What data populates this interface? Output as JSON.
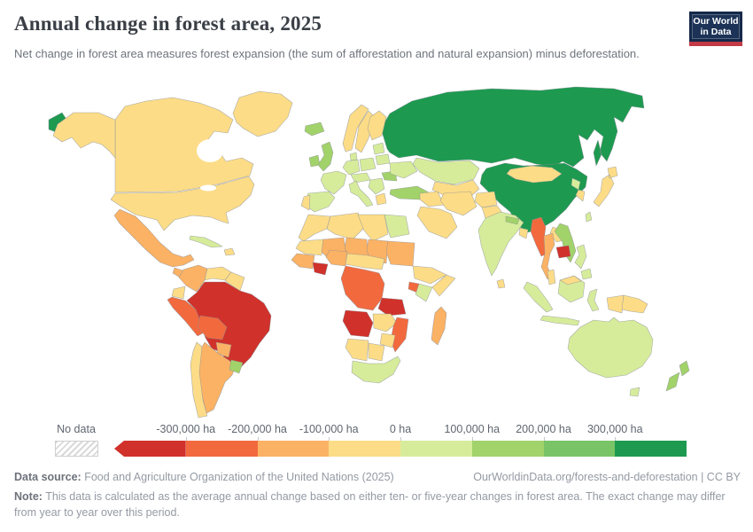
{
  "header": {
    "title": "Annual change in forest area, 2025",
    "subtitle": "Net change in forest area measures forest expansion (the sum of afforestation and natural expansion) minus deforestation.",
    "logo": {
      "line1": "Our World",
      "line2": "in Data"
    }
  },
  "legend": {
    "no_data_label": "No data",
    "tick_labels": [
      "-300,000 ha",
      "-200,000 ha",
      "-100,000 ha",
      "0 ha",
      "100,000 ha",
      "200,000 ha",
      "300,000 ha"
    ]
  },
  "footer": {
    "source_label": "Data source:",
    "source_text": " Food and Agriculture Organization of the United Nations (2025)",
    "link_text": "OurWorldinData.org/forests-and-deforestation | CC BY",
    "note_label": "Note:",
    "note_text": " This data is calculated as the average annual change based on either ten- or five-year changes in forest area. The exact change may differ from year to year over this period."
  },
  "colors": {
    "title_text": "#3a3f46",
    "subtitle_text": "#6e747d",
    "logo_background": "#1c3357",
    "logo_underline": "#c13a45",
    "legend_label_text": "#5f6670",
    "country_border": "#8a8f98"
  },
  "chart_data": {
    "type": "choropleth",
    "title": "Annual change in forest area, 2025",
    "unit": "ha",
    "legend_position": "bottom",
    "bin_edges": [
      -300000,
      -200000,
      -100000,
      0,
      100000,
      200000,
      300000
    ],
    "bin_colors": [
      "#d0312b",
      "#f2693e",
      "#fbb264",
      "#fcdc87",
      "#d7ec9b",
      "#a2d26a",
      "#79c466",
      "#1d9a50"
    ],
    "bin_labels": [
      "< -300,000",
      "-300,000 to -200,000",
      "-200,000 to -100,000",
      "-100,000 to 0",
      "0 to 100,000",
      "100,000 to 200,000",
      "200,000 to 300,000",
      "> 300,000"
    ],
    "regions": [
      {
        "id": "russia",
        "name": "Russia",
        "bin": 7
      },
      {
        "id": "china",
        "name": "China",
        "bin": 7
      },
      {
        "id": "canada",
        "name": "Canada",
        "bin": 3
      },
      {
        "id": "alaska",
        "name": "United States (Alaska)",
        "bin": 3
      },
      {
        "id": "usa",
        "name": "United States",
        "bin": 3
      },
      {
        "id": "greenland",
        "name": "Greenland",
        "bin": 3
      },
      {
        "id": "mexico",
        "name": "Mexico",
        "bin": 2
      },
      {
        "id": "central-america",
        "name": "Central America",
        "bin": 2
      },
      {
        "id": "panama-cr",
        "name": "Panama / Costa Rica",
        "bin": 5
      },
      {
        "id": "cuba",
        "name": "Cuba",
        "bin": 4
      },
      {
        "id": "hispaniola",
        "name": "Hispaniola",
        "bin": 3
      },
      {
        "id": "colombia",
        "name": "Colombia",
        "bin": 2
      },
      {
        "id": "venezuela",
        "name": "Venezuela",
        "bin": 3
      },
      {
        "id": "guianas",
        "name": "Guyana / Suriname",
        "bin": 3
      },
      {
        "id": "ecuador",
        "name": "Ecuador",
        "bin": 3
      },
      {
        "id": "peru",
        "name": "Peru",
        "bin": 1
      },
      {
        "id": "brazil",
        "name": "Brazil",
        "bin": 0
      },
      {
        "id": "bolivia",
        "name": "Bolivia",
        "bin": 1
      },
      {
        "id": "paraguay",
        "name": "Paraguay",
        "bin": 2
      },
      {
        "id": "uruguay",
        "name": "Uruguay",
        "bin": 5
      },
      {
        "id": "argentina",
        "name": "Argentina",
        "bin": 2
      },
      {
        "id": "chile",
        "name": "Chile",
        "bin": 3
      },
      {
        "id": "iceland",
        "name": "Iceland",
        "bin": 5
      },
      {
        "id": "ireland",
        "name": "Ireland",
        "bin": 5
      },
      {
        "id": "uk",
        "name": "United Kingdom",
        "bin": 5
      },
      {
        "id": "norway",
        "name": "Norway",
        "bin": 3
      },
      {
        "id": "sweden",
        "name": "Sweden",
        "bin": 3
      },
      {
        "id": "finland",
        "name": "Finland",
        "bin": 3
      },
      {
        "id": "denmark",
        "name": "Denmark",
        "bin": 4
      },
      {
        "id": "france",
        "name": "France",
        "bin": 4
      },
      {
        "id": "spain",
        "name": "Spain",
        "bin": 4
      },
      {
        "id": "portugal",
        "name": "Portugal",
        "bin": 3
      },
      {
        "id": "germany",
        "name": "Germany",
        "bin": 4
      },
      {
        "id": "poland",
        "name": "Poland",
        "bin": 4
      },
      {
        "id": "central-europe",
        "name": "Central Europe",
        "bin": 4
      },
      {
        "id": "italy",
        "name": "Italy",
        "bin": 4
      },
      {
        "id": "balkans",
        "name": "Balkans",
        "bin": 4
      },
      {
        "id": "greece",
        "name": "Greece",
        "bin": 3
      },
      {
        "id": "romania",
        "name": "Romania",
        "bin": 5
      },
      {
        "id": "baltics",
        "name": "Baltic states",
        "bin": 4
      },
      {
        "id": "belarus",
        "name": "Belarus",
        "bin": 4
      },
      {
        "id": "ukraine",
        "name": "Ukraine",
        "bin": 4
      },
      {
        "id": "turkey",
        "name": "Turkey",
        "bin": 5
      },
      {
        "id": "kazakhstan",
        "name": "Kazakhstan",
        "bin": 4
      },
      {
        "id": "central-asia",
        "name": "Central Asia",
        "bin": 3
      },
      {
        "id": "iraq-syria",
        "name": "Iraq / Syria",
        "bin": 3
      },
      {
        "id": "iran",
        "name": "Iran",
        "bin": 3
      },
      {
        "id": "arabia",
        "name": "Saudi Arabia",
        "bin": 3
      },
      {
        "id": "afghanistan",
        "name": "Afghanistan",
        "bin": 3
      },
      {
        "id": "pakistan",
        "name": "Pakistan",
        "bin": 3
      },
      {
        "id": "india",
        "name": "India",
        "bin": 4
      },
      {
        "id": "sri-lanka",
        "name": "Sri Lanka",
        "bin": 3
      },
      {
        "id": "nepal",
        "name": "Nepal",
        "bin": 5
      },
      {
        "id": "bangladesh",
        "name": "Bangladesh",
        "bin": 3
      },
      {
        "id": "mongolia",
        "name": "Mongolia",
        "bin": 3
      },
      {
        "id": "north-korea",
        "name": "North Korea",
        "bin": 4
      },
      {
        "id": "south-korea",
        "name": "South Korea",
        "bin": 3
      },
      {
        "id": "japan",
        "name": "Japan",
        "bin": 3
      },
      {
        "id": "taiwan",
        "name": "Taiwan",
        "bin": 4
      },
      {
        "id": "myanmar",
        "name": "Myanmar",
        "bin": 1
      },
      {
        "id": "thailand",
        "name": "Thailand",
        "bin": 2
      },
      {
        "id": "laos",
        "name": "Laos",
        "bin": 3
      },
      {
        "id": "cambodia",
        "name": "Cambodia",
        "bin": 0
      },
      {
        "id": "vietnam",
        "name": "Vietnam",
        "bin": 5
      },
      {
        "id": "malay-peninsula",
        "name": "Malaysia (peninsula)",
        "bin": 3
      },
      {
        "id": "sumatra",
        "name": "Indonesia (Sumatra)",
        "bin": 4
      },
      {
        "id": "java",
        "name": "Indonesia (Java)",
        "bin": 4
      },
      {
        "id": "borneo-indonesia",
        "name": "Indonesia (Kalimantan)",
        "bin": 4
      },
      {
        "id": "borneo-malaysia",
        "name": "Malaysia (Borneo)",
        "bin": 3
      },
      {
        "id": "sulawesi",
        "name": "Indonesia (Sulawesi)",
        "bin": 4
      },
      {
        "id": "philippines",
        "name": "Philippines",
        "bin": 4
      },
      {
        "id": "new-guinea-west",
        "name": "Indonesia (Papua)",
        "bin": 3
      },
      {
        "id": "papua-new-guinea",
        "name": "Papua New Guinea",
        "bin": 3
      },
      {
        "id": "australia",
        "name": "Australia",
        "bin": 4
      },
      {
        "id": "tasmania",
        "name": "Australia (Tasmania)",
        "bin": 4
      },
      {
        "id": "new-zealand",
        "name": "New Zealand",
        "bin": 5
      },
      {
        "id": "morocco",
        "name": "Morocco",
        "bin": 3
      },
      {
        "id": "algeria",
        "name": "Algeria",
        "bin": 3
      },
      {
        "id": "libya",
        "name": "Libya",
        "bin": 3
      },
      {
        "id": "egypt",
        "name": "Egypt",
        "bin": 4
      },
      {
        "id": "mauritania",
        "name": "Mauritania",
        "bin": 3
      },
      {
        "id": "mali",
        "name": "Mali",
        "bin": 2
      },
      {
        "id": "niger",
        "name": "Niger",
        "bin": 2
      },
      {
        "id": "chad",
        "name": "Chad",
        "bin": 2
      },
      {
        "id": "sudan",
        "name": "Sudan",
        "bin": 2
      },
      {
        "id": "senegal-guinea",
        "name": "Senegal / Guinea",
        "bin": 2
      },
      {
        "id": "ghana-civ",
        "name": "Côte d'Ivoire / Ghana",
        "bin": 0
      },
      {
        "id": "nigeria",
        "name": "Nigeria",
        "bin": 2
      },
      {
        "id": "cameroon-car",
        "name": "Cameroon / Central African Republic",
        "bin": 3
      },
      {
        "id": "ethiopia",
        "name": "Ethiopia",
        "bin": 3
      },
      {
        "id": "somalia",
        "name": "Somalia",
        "bin": 3
      },
      {
        "id": "uganda",
        "name": "Uganda",
        "bin": 1
      },
      {
        "id": "kenya",
        "name": "Kenya",
        "bin": 4
      },
      {
        "id": "drc",
        "name": "Democratic Republic of Congo",
        "bin": 1
      },
      {
        "id": "tanzania",
        "name": "Tanzania",
        "bin": 0
      },
      {
        "id": "angola",
        "name": "Angola",
        "bin": 0
      },
      {
        "id": "zambia",
        "name": "Zambia",
        "bin": 3
      },
      {
        "id": "mozambique",
        "name": "Mozambique",
        "bin": 1
      },
      {
        "id": "zimbabwe",
        "name": "Zimbabwe",
        "bin": 3
      },
      {
        "id": "namibia",
        "name": "Namibia",
        "bin": 3
      },
      {
        "id": "botswana",
        "name": "Botswana",
        "bin": 3
      },
      {
        "id": "south-africa",
        "name": "South Africa",
        "bin": 4
      },
      {
        "id": "madagascar",
        "name": "Madagascar",
        "bin": 2
      }
    ]
  }
}
